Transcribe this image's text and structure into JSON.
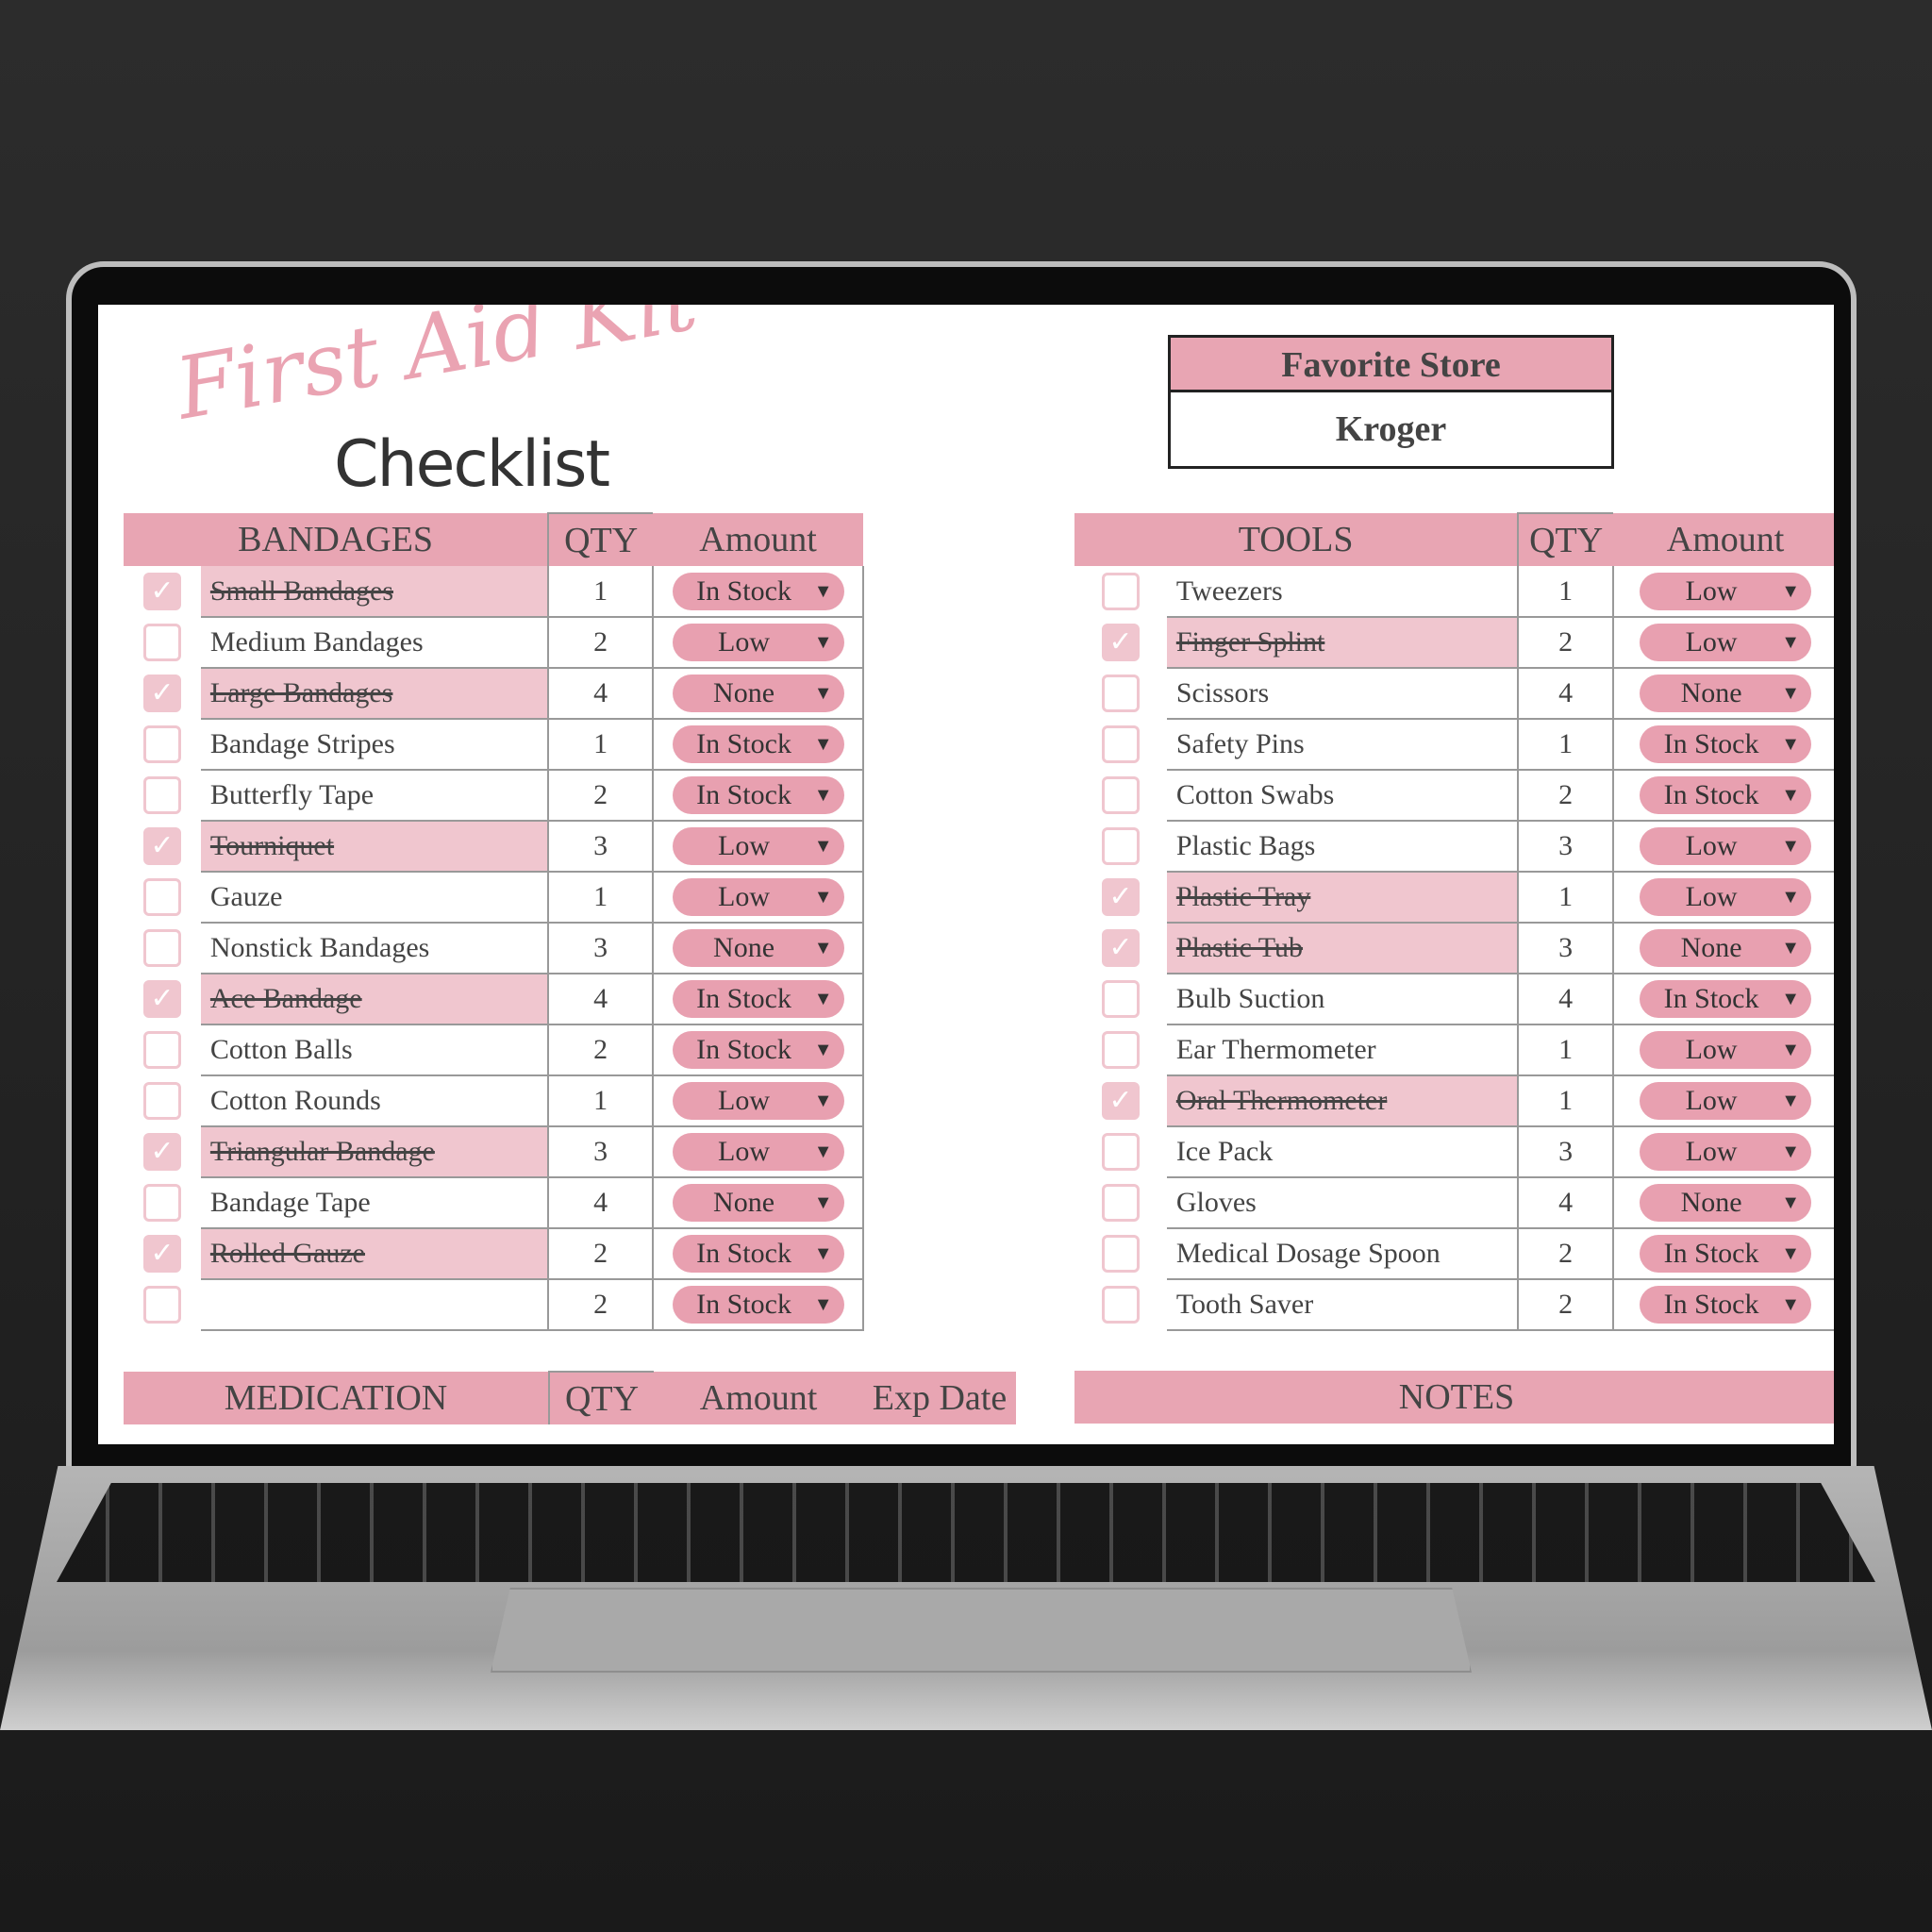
{
  "title": {
    "script": "First Aid Kit",
    "main": "Checklist"
  },
  "favorite_store": {
    "label": "Favorite Store",
    "value": "Kroger"
  },
  "colors": {
    "header": "#e8a5b3",
    "checked_row": "#f0c6cf",
    "pill": "#e8a0b0"
  },
  "bandages": {
    "headers": [
      "BANDAGES",
      "QTY",
      "Amount"
    ],
    "rows": [
      {
        "name": "Small Bandages",
        "qty": "1",
        "amount": "In Stock",
        "checked": true
      },
      {
        "name": "Medium Bandages",
        "qty": "2",
        "amount": "Low",
        "checked": false
      },
      {
        "name": "Large Bandages",
        "qty": "4",
        "amount": "None",
        "checked": true
      },
      {
        "name": "Bandage Stripes",
        "qty": "1",
        "amount": "In Stock",
        "checked": false
      },
      {
        "name": "Butterfly Tape",
        "qty": "2",
        "amount": "In Stock",
        "checked": false
      },
      {
        "name": "Tourniquet",
        "qty": "3",
        "amount": "Low",
        "checked": true
      },
      {
        "name": "Gauze",
        "qty": "1",
        "amount": "Low",
        "checked": false
      },
      {
        "name": "Nonstick Bandages",
        "qty": "3",
        "amount": "None",
        "checked": false
      },
      {
        "name": "Ace Bandage",
        "qty": "4",
        "amount": "In Stock",
        "checked": true
      },
      {
        "name": "Cotton Balls",
        "qty": "2",
        "amount": "In Stock",
        "checked": false
      },
      {
        "name": "Cotton Rounds",
        "qty": "1",
        "amount": "Low",
        "checked": false
      },
      {
        "name": "Triangular Bandage",
        "qty": "3",
        "amount": "Low",
        "checked": true
      },
      {
        "name": "Bandage Tape",
        "qty": "4",
        "amount": "None",
        "checked": false
      },
      {
        "name": "Rolled Gauze",
        "qty": "2",
        "amount": "In Stock",
        "checked": true
      },
      {
        "name": "",
        "qty": "2",
        "amount": "In Stock",
        "checked": false
      }
    ]
  },
  "tools": {
    "headers": [
      "TOOLS",
      "QTY",
      "Amount"
    ],
    "rows": [
      {
        "name": "Tweezers",
        "qty": "1",
        "amount": "Low",
        "checked": false
      },
      {
        "name": "Finger Splint",
        "qty": "2",
        "amount": "Low",
        "checked": true
      },
      {
        "name": "Scissors",
        "qty": "4",
        "amount": "None",
        "checked": false
      },
      {
        "name": "Safety Pins",
        "qty": "1",
        "amount": "In Stock",
        "checked": false
      },
      {
        "name": "Cotton Swabs",
        "qty": "2",
        "amount": "In Stock",
        "checked": false
      },
      {
        "name": "Plastic Bags",
        "qty": "3",
        "amount": "Low",
        "checked": false
      },
      {
        "name": "Plastic Tray",
        "qty": "1",
        "amount": "Low",
        "checked": true
      },
      {
        "name": "Plastic Tub",
        "qty": "3",
        "amount": "None",
        "checked": true
      },
      {
        "name": "Bulb Suction",
        "qty": "4",
        "amount": "In Stock",
        "checked": false
      },
      {
        "name": "Ear Thermometer",
        "qty": "1",
        "amount": "Low",
        "checked": false
      },
      {
        "name": "Oral Thermometer",
        "qty": "1",
        "amount": "Low",
        "checked": true
      },
      {
        "name": "Ice Pack",
        "qty": "3",
        "amount": "Low",
        "checked": false
      },
      {
        "name": "Gloves",
        "qty": "4",
        "amount": "None",
        "checked": false
      },
      {
        "name": "Medical Dosage Spoon",
        "qty": "2",
        "amount": "In Stock",
        "checked": false
      },
      {
        "name": "Tooth Saver",
        "qty": "2",
        "amount": "In Stock",
        "checked": false
      }
    ]
  },
  "medication": {
    "headers": [
      "MEDICATION",
      "QTY",
      "Amount",
      "Exp Date"
    ]
  },
  "notes": {
    "header": "NOTES"
  }
}
